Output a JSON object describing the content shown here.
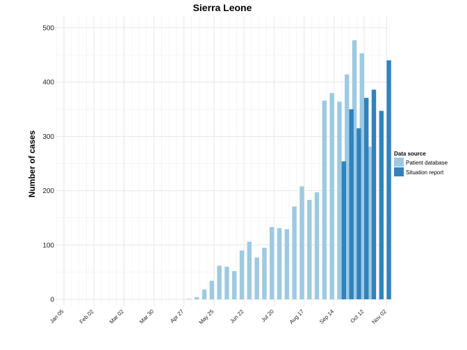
{
  "chart_data": {
    "type": "bar",
    "title": "Sierra Leone",
    "xlabel": "",
    "ylabel": "Number of cases",
    "ylim": [
      0,
      520
    ],
    "yticks": [
      0,
      100,
      200,
      300,
      400,
      500
    ],
    "grid": true,
    "legend_position": "right",
    "legend_title": "Data source",
    "x_tick_labels": [
      "Jan 05",
      "Feb 02",
      "Mar 02",
      "Mar 30",
      "Apr 27",
      "May 25",
      "Jun 22",
      "Jul 20",
      "Aug 17",
      "Sep 14",
      "Oct 12",
      "Nov 02"
    ],
    "x_tick_weeks": [
      0,
      4,
      8,
      12,
      16,
      20,
      24,
      28,
      32,
      36,
      40,
      43
    ],
    "colors": {
      "Patient database": "#9ecae1",
      "Situation report": "#3182bd"
    },
    "series": [
      {
        "name": "Patient database",
        "weeks": [
          16,
          17,
          18,
          19,
          20,
          21,
          22,
          23,
          24,
          25,
          26,
          27,
          28,
          29,
          30,
          31,
          32,
          33,
          34,
          35,
          36,
          37,
          38,
          39,
          40,
          41,
          42,
          43
        ],
        "values": [
          0,
          1,
          4,
          18,
          34,
          62,
          60,
          52,
          90,
          106,
          77,
          95,
          133,
          131,
          129,
          171,
          208,
          183,
          197,
          366,
          380,
          364,
          414,
          477,
          453,
          281,
          0,
          0
        ],
        "offset": "left"
      },
      {
        "name": "Situation report",
        "weeks": [
          37,
          38,
          39,
          40,
          41,
          42,
          43
        ],
        "values": [
          254,
          350,
          315,
          371,
          386,
          347,
          440
        ],
        "offset": "right"
      }
    ]
  }
}
